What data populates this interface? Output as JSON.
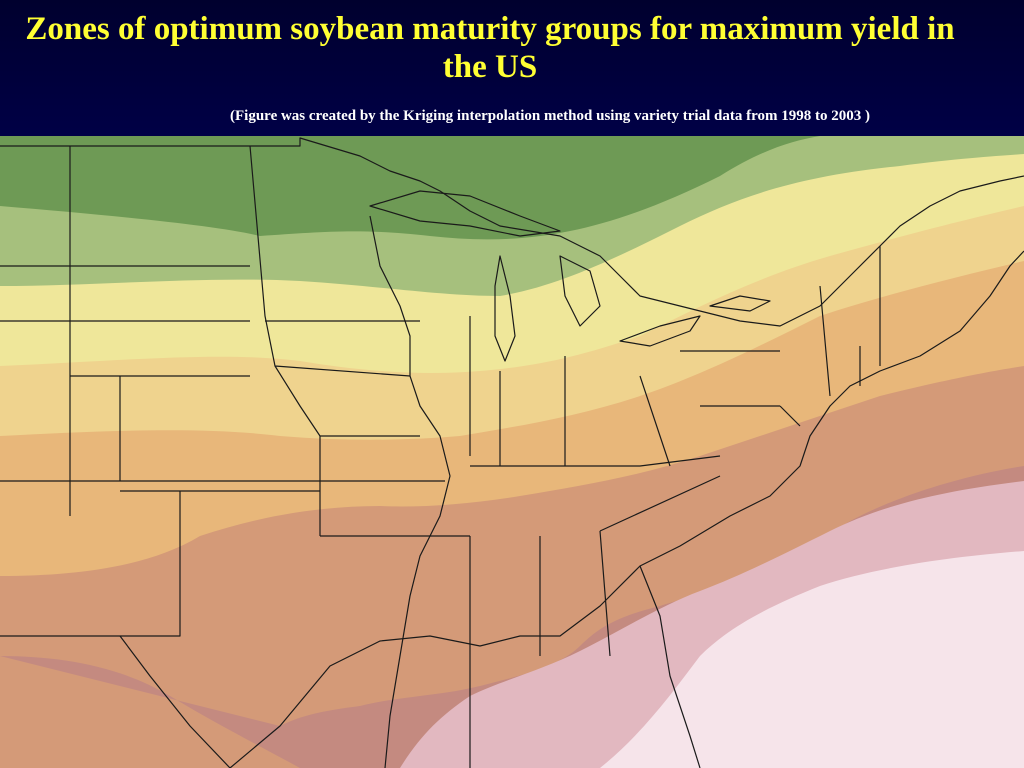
{
  "title": "Zones of optimum soybean maturity groups for maximum yield in the US",
  "subtitle": "(Figure was created by the Kriging interpolation method using variety trial data from 1998 to 2003 )",
  "colors": {
    "header_bg": "#000040",
    "title": "#ffff33",
    "subtitle": "#ffffff",
    "zones": [
      "#6e9a55",
      "#a6c07d",
      "#efe79a",
      "#efd38e",
      "#e8b77a",
      "#d49a78",
      "#c48a80",
      "#e2b8c0",
      "#f6e4ea"
    ]
  }
}
